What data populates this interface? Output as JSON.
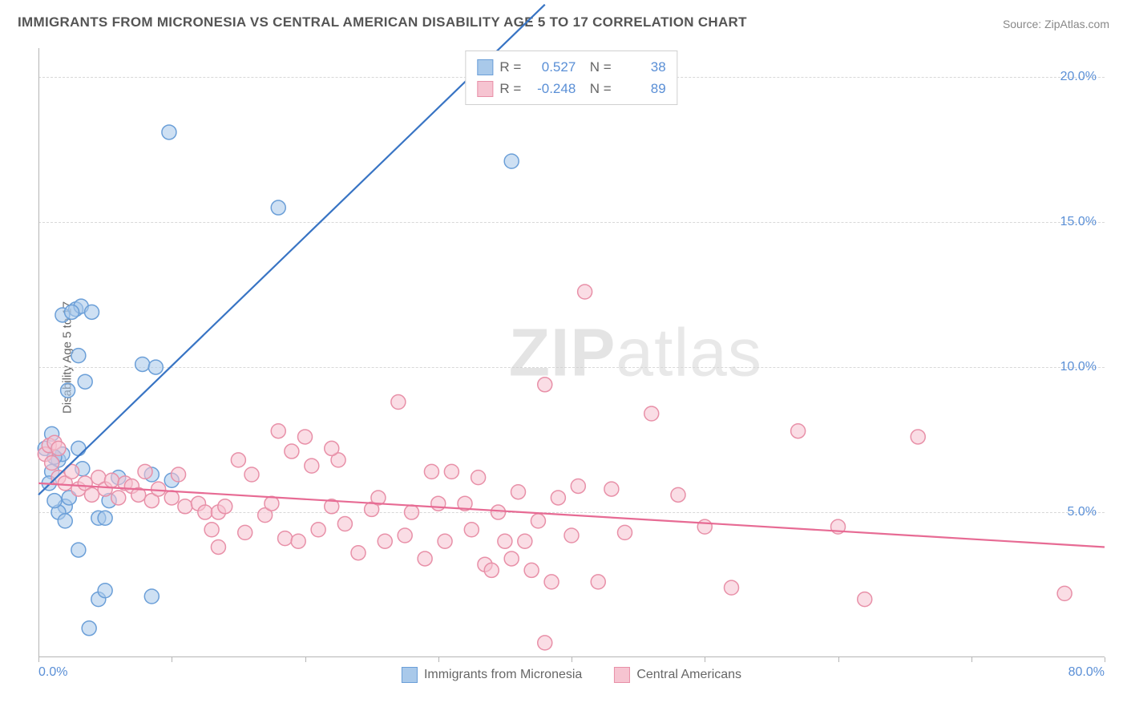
{
  "title": "IMMIGRANTS FROM MICRONESIA VS CENTRAL AMERICAN DISABILITY AGE 5 TO 17 CORRELATION CHART",
  "source": "Source: ZipAtlas.com",
  "ylabel": "Disability Age 5 to 17",
  "watermark_a": "ZIP",
  "watermark_b": "atlas",
  "chart": {
    "type": "scatter",
    "xlim": [
      0,
      80
    ],
    "ylim": [
      0,
      21
    ],
    "y_ticks": [
      5,
      10,
      15,
      20
    ],
    "y_tick_labels": [
      "5.0%",
      "10.0%",
      "15.0%",
      "20.0%"
    ],
    "x_ticks": [
      0,
      10,
      20,
      30,
      40,
      50,
      60,
      70,
      80
    ],
    "x_tick_labels_shown": {
      "0": "0.0%",
      "80": "80.0%"
    },
    "background_color": "#ffffff",
    "grid_color": "#d8d8d8",
    "axis_color": "#b5b5b5",
    "tick_label_color": "#5a8fd6",
    "marker_radius": 9,
    "marker_stroke_width": 1.5,
    "marker_fill_opacity": 0.22,
    "line_width": 2.2,
    "series": [
      {
        "name": "Immigrants from Micronesia",
        "color_stroke": "#6b9fd8",
        "color_fill": "#a9c9ea",
        "line_color": "#3874c4",
        "R": "0.527",
        "N": "38",
        "trend": {
          "x1": 0,
          "y1": 5.6,
          "x2": 38,
          "y2": 22.5
        },
        "points": [
          [
            1.5,
            6.8
          ],
          [
            1.8,
            7.0
          ],
          [
            1.0,
            6.4
          ],
          [
            2.0,
            5.2
          ],
          [
            2.3,
            5.5
          ],
          [
            0.8,
            6.0
          ],
          [
            2.8,
            12.0
          ],
          [
            3.2,
            12.1
          ],
          [
            4.0,
            11.9
          ],
          [
            3.0,
            10.4
          ],
          [
            3.5,
            9.5
          ],
          [
            7.8,
            10.1
          ],
          [
            8.8,
            10.0
          ],
          [
            9.8,
            18.1
          ],
          [
            18.0,
            15.5
          ],
          [
            35.5,
            17.1
          ],
          [
            1.5,
            5.0
          ],
          [
            2.0,
            4.7
          ],
          [
            4.5,
            4.8
          ],
          [
            5.0,
            4.8
          ],
          [
            6.0,
            6.2
          ],
          [
            8.5,
            6.3
          ],
          [
            3.0,
            3.7
          ],
          [
            4.5,
            2.0
          ],
          [
            5.0,
            2.3
          ],
          [
            8.5,
            2.1
          ],
          [
            3.8,
            1.0
          ],
          [
            3.0,
            7.2
          ],
          [
            2.2,
            9.2
          ],
          [
            1.8,
            11.8
          ],
          [
            2.5,
            11.9
          ],
          [
            0.5,
            7.2
          ],
          [
            1.0,
            7.7
          ],
          [
            1.2,
            6.9
          ],
          [
            3.3,
            6.5
          ],
          [
            1.2,
            5.4
          ],
          [
            5.3,
            5.4
          ],
          [
            10.0,
            6.1
          ]
        ]
      },
      {
        "name": "Central Americans",
        "color_stroke": "#e890a8",
        "color_fill": "#f6c4d1",
        "line_color": "#e76b94",
        "R": "-0.248",
        "N": "89",
        "trend": {
          "x1": 0,
          "y1": 6.0,
          "x2": 80,
          "y2": 3.8
        },
        "points": [
          [
            0.5,
            7.0
          ],
          [
            0.8,
            7.3
          ],
          [
            1.0,
            6.7
          ],
          [
            1.2,
            7.4
          ],
          [
            1.5,
            6.2
          ],
          [
            1.5,
            7.2
          ],
          [
            2.0,
            6.0
          ],
          [
            2.5,
            6.4
          ],
          [
            3.0,
            5.8
          ],
          [
            3.5,
            6.0
          ],
          [
            4.0,
            5.6
          ],
          [
            4.5,
            6.2
          ],
          [
            5.0,
            5.8
          ],
          [
            5.5,
            6.1
          ],
          [
            6.0,
            5.5
          ],
          [
            6.5,
            6.0
          ],
          [
            7.0,
            5.9
          ],
          [
            7.5,
            5.6
          ],
          [
            8.0,
            6.4
          ],
          [
            8.5,
            5.4
          ],
          [
            9.0,
            5.8
          ],
          [
            10.0,
            5.5
          ],
          [
            10.5,
            6.3
          ],
          [
            11.0,
            5.2
          ],
          [
            12.0,
            5.3
          ],
          [
            12.5,
            5.0
          ],
          [
            13.0,
            4.4
          ],
          [
            13.5,
            5.0
          ],
          [
            14.0,
            5.2
          ],
          [
            15.0,
            6.8
          ],
          [
            15.5,
            4.3
          ],
          [
            16.0,
            6.3
          ],
          [
            17.0,
            4.9
          ],
          [
            17.5,
            5.3
          ],
          [
            18.0,
            7.8
          ],
          [
            18.5,
            4.1
          ],
          [
            19.0,
            7.1
          ],
          [
            19.5,
            4.0
          ],
          [
            20.0,
            7.6
          ],
          [
            20.5,
            6.6
          ],
          [
            21.0,
            4.4
          ],
          [
            22.0,
            5.2
          ],
          [
            22.5,
            6.8
          ],
          [
            23.0,
            4.6
          ],
          [
            24.0,
            3.6
          ],
          [
            25.0,
            5.1
          ],
          [
            25.5,
            5.5
          ],
          [
            26.0,
            4.0
          ],
          [
            27.0,
            8.8
          ],
          [
            27.5,
            4.2
          ],
          [
            28.0,
            5.0
          ],
          [
            29.0,
            3.4
          ],
          [
            29.5,
            6.4
          ],
          [
            30.0,
            5.3
          ],
          [
            30.5,
            4.0
          ],
          [
            31.0,
            6.4
          ],
          [
            32.0,
            5.3
          ],
          [
            32.5,
            4.4
          ],
          [
            33.0,
            6.2
          ],
          [
            33.5,
            3.2
          ],
          [
            34.0,
            3.0
          ],
          [
            34.5,
            5.0
          ],
          [
            35.0,
            4.0
          ],
          [
            35.5,
            3.4
          ],
          [
            36.0,
            5.7
          ],
          [
            36.5,
            4.0
          ],
          [
            37.0,
            3.0
          ],
          [
            37.5,
            4.7
          ],
          [
            38.0,
            9.4
          ],
          [
            38.5,
            2.6
          ],
          [
            39.0,
            5.5
          ],
          [
            40.0,
            4.2
          ],
          [
            40.5,
            5.9
          ],
          [
            41.0,
            12.6
          ],
          [
            42.0,
            2.6
          ],
          [
            43.0,
            5.8
          ],
          [
            44.0,
            4.3
          ],
          [
            46.0,
            8.4
          ],
          [
            48.0,
            5.6
          ],
          [
            50.0,
            4.5
          ],
          [
            52.0,
            2.4
          ],
          [
            38.0,
            0.5
          ],
          [
            57.0,
            7.8
          ],
          [
            62.0,
            2.0
          ],
          [
            66.0,
            7.6
          ],
          [
            60.0,
            4.5
          ],
          [
            77.0,
            2.2
          ],
          [
            22.0,
            7.2
          ],
          [
            13.5,
            3.8
          ]
        ]
      }
    ]
  },
  "legend_bottom": [
    {
      "swatch_fill": "#a9c9ea",
      "swatch_stroke": "#6b9fd8",
      "label": "Immigrants from Micronesia"
    },
    {
      "swatch_fill": "#f6c4d1",
      "swatch_stroke": "#e890a8",
      "label": "Central Americans"
    }
  ]
}
